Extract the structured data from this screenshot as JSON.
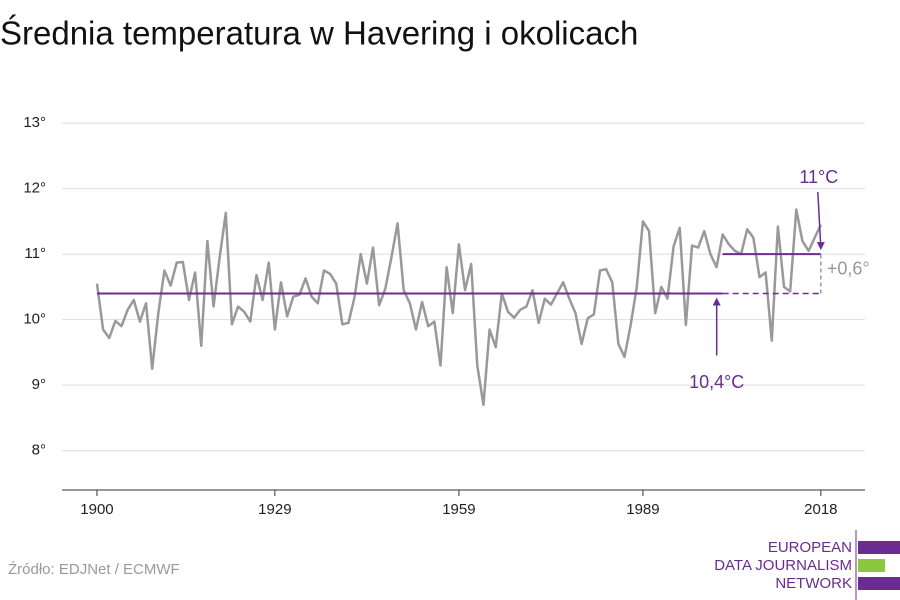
{
  "chart_data": {
    "type": "line",
    "title": "Średnia temperatura w Havering i okolicach",
    "x": [
      1900,
      1901,
      1902,
      1903,
      1904,
      1905,
      1906,
      1907,
      1908,
      1909,
      1910,
      1911,
      1912,
      1913,
      1914,
      1915,
      1916,
      1917,
      1918,
      1919,
      1920,
      1921,
      1922,
      1923,
      1924,
      1925,
      1926,
      1927,
      1928,
      1929,
      1930,
      1931,
      1932,
      1933,
      1934,
      1935,
      1936,
      1937,
      1938,
      1939,
      1940,
      1941,
      1942,
      1943,
      1944,
      1945,
      1946,
      1947,
      1948,
      1949,
      1950,
      1951,
      1952,
      1953,
      1954,
      1955,
      1956,
      1957,
      1958,
      1959,
      1960,
      1961,
      1962,
      1963,
      1964,
      1965,
      1966,
      1967,
      1968,
      1969,
      1970,
      1971,
      1972,
      1973,
      1974,
      1975,
      1976,
      1977,
      1978,
      1979,
      1980,
      1981,
      1982,
      1983,
      1984,
      1985,
      1986,
      1987,
      1988,
      1989,
      1990,
      1991,
      1992,
      1993,
      1994,
      1995,
      1996,
      1997,
      1998,
      1999,
      2000,
      2001,
      2002,
      2003,
      2004,
      2005,
      2006,
      2007,
      2008,
      2009,
      2010,
      2011,
      2012,
      2013,
      2014,
      2015,
      2016,
      2017,
      2018
    ],
    "values": [
      10.55,
      9.85,
      9.72,
      9.98,
      9.9,
      10.15,
      10.3,
      9.97,
      10.25,
      9.25,
      10.1,
      10.75,
      10.52,
      10.87,
      10.88,
      10.3,
      10.72,
      9.6,
      11.2,
      10.2,
      10.95,
      11.63,
      9.93,
      10.2,
      10.12,
      9.97,
      10.68,
      10.3,
      10.87,
      9.85,
      10.57,
      10.05,
      10.35,
      10.38,
      10.63,
      10.35,
      10.25,
      10.75,
      10.7,
      10.55,
      9.93,
      9.95,
      10.35,
      11.0,
      10.55,
      11.1,
      10.22,
      10.47,
      10.95,
      11.47,
      10.45,
      10.25,
      9.85,
      10.27,
      9.9,
      9.97,
      9.3,
      10.8,
      10.1,
      11.15,
      10.45,
      10.85,
      9.3,
      8.7,
      9.85,
      9.58,
      10.4,
      10.12,
      10.03,
      10.15,
      10.2,
      10.45,
      9.95,
      10.32,
      10.23,
      10.4,
      10.57,
      10.32,
      10.1,
      9.63,
      10.02,
      10.08,
      10.75,
      10.77,
      10.57,
      9.63,
      9.43,
      9.92,
      10.5,
      11.5,
      11.35,
      10.1,
      10.5,
      10.32,
      11.12,
      11.4,
      9.92,
      11.13,
      11.1,
      11.35,
      11.0,
      10.8,
      11.3,
      11.15,
      11.05,
      11.0,
      11.38,
      11.25,
      10.65,
      10.72,
      9.68,
      11.42,
      10.5,
      10.43,
      11.68,
      11.2,
      11.05,
      11.25,
      11.45
    ],
    "color": "#999999",
    "xlim": [
      1894.3,
      2025.2
    ],
    "xticks": [
      1900,
      1929,
      1959,
      1989,
      2018
    ],
    "ylim": [
      7.4,
      13.2
    ],
    "yticks": [
      {
        "value": 8,
        "label": "8°"
      },
      {
        "value": 9,
        "label": "9°"
      },
      {
        "value": 10,
        "label": "10°"
      },
      {
        "value": 11,
        "label": "11°"
      },
      {
        "value": 12,
        "label": "12°"
      },
      {
        "value": 13,
        "label": "13°"
      }
    ],
    "grid": true,
    "baseline": {
      "value": 10.4,
      "label": "10,4°C",
      "x": [
        1900,
        2002
      ],
      "dashed_to": 2018,
      "color": "#6a2c91"
    },
    "recent": {
      "value": 11,
      "label": "11°C",
      "x": [
        2002,
        2018
      ],
      "color": "#6a2c91"
    },
    "difference": {
      "value": 0.6,
      "label": "+0,6°",
      "color": "#999999"
    }
  },
  "source": "Źródło: EDJNet / ECMWF",
  "logo": [
    "EUROPEAN",
    "DATA JOURNALISM",
    "NETWORK"
  ]
}
